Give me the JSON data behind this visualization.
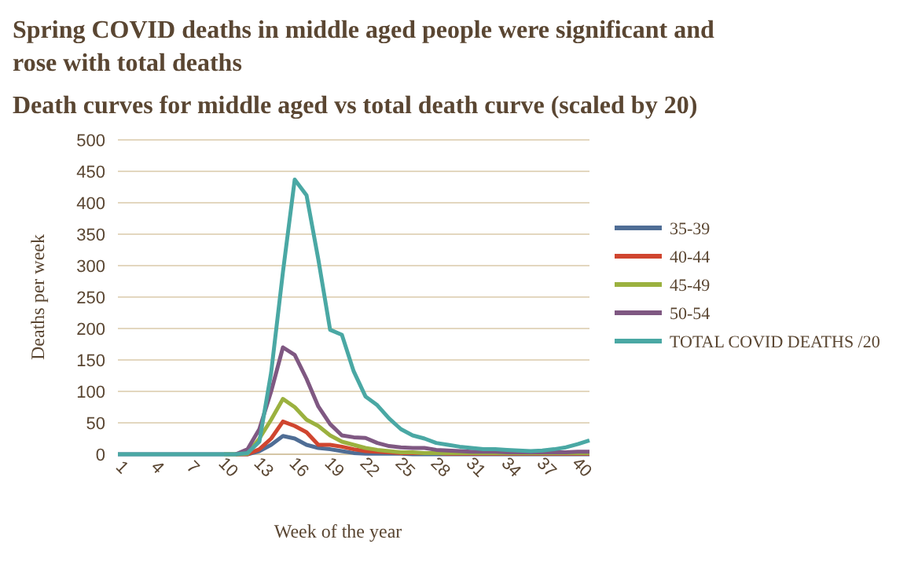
{
  "chart_data": {
    "type": "line",
    "title": "Spring COVID deaths in middle aged people were significant and rose with total deaths",
    "subtitle": "Death curves for middle aged vs total death curve (scaled by 20)",
    "xlabel": "Week of the year",
    "ylabel": "Deaths per week",
    "categories": [
      "1",
      null,
      null,
      "4",
      null,
      null,
      "7",
      null,
      null,
      "10",
      null,
      null,
      "13",
      null,
      null,
      "16",
      null,
      null,
      "19",
      null,
      null,
      "22",
      null,
      null,
      "25",
      null,
      null,
      "28",
      null,
      null,
      "31",
      null,
      null,
      "34",
      null,
      null,
      "37",
      null,
      null,
      "40",
      null
    ],
    "ylim": [
      0,
      500
    ],
    "yticks": [
      0,
      50,
      100,
      150,
      200,
      250,
      300,
      350,
      400,
      450,
      500
    ],
    "grid": "y",
    "legend": "right",
    "marker": "none",
    "line_style": "solid",
    "series": [
      {
        "name": "35-39",
        "color": "#4f6d95",
        "values": [
          0,
          0,
          0,
          0,
          0,
          0,
          0,
          0,
          0,
          0,
          0,
          0,
          5,
          15,
          29,
          25,
          15,
          10,
          8,
          5,
          2,
          1,
          1,
          1,
          1,
          0,
          0,
          0,
          0,
          0,
          0,
          0,
          0,
          0,
          0,
          0,
          0,
          0,
          0,
          0,
          0
        ]
      },
      {
        "name": "40-44",
        "color": "#d0452f",
        "values": [
          null,
          null,
          null,
          null,
          null,
          null,
          null,
          null,
          null,
          null,
          0,
          0,
          8,
          25,
          52,
          45,
          35,
          15,
          15,
          12,
          8,
          5,
          4,
          3,
          2,
          2,
          2,
          2,
          1,
          1,
          1,
          1,
          1,
          1,
          1,
          1,
          1,
          1,
          1,
          1,
          1
        ]
      },
      {
        "name": "45-49",
        "color": "#9bb13f",
        "values": [
          null,
          null,
          null,
          null,
          null,
          null,
          null,
          null,
          null,
          0,
          0,
          1,
          25,
          55,
          88,
          75,
          55,
          45,
          30,
          20,
          15,
          10,
          7,
          5,
          3,
          3,
          2,
          2,
          2,
          2,
          2,
          2,
          2,
          2,
          2,
          2,
          2,
          2,
          2,
          2,
          2
        ]
      },
      {
        "name": "50-54",
        "color": "#7f5882",
        "values": [
          null,
          null,
          null,
          null,
          null,
          null,
          null,
          null,
          null,
          null,
          0,
          8,
          40,
          100,
          170,
          158,
          120,
          76,
          48,
          30,
          27,
          26,
          18,
          13,
          11,
          10,
          10,
          7,
          6,
          5,
          4,
          4,
          4,
          3,
          3,
          3,
          3,
          3,
          3,
          4,
          4
        ]
      },
      {
        "name": "TOTAL COVID DEATHS /20",
        "color": "#4aa8a4",
        "values": [
          0,
          0,
          0,
          0,
          0,
          0,
          0,
          0,
          0,
          0,
          0,
          2,
          20,
          130,
          290,
          437,
          412,
          310,
          198,
          190,
          132,
          92,
          78,
          57,
          40,
          30,
          25,
          18,
          15,
          12,
          10,
          8,
          8,
          7,
          6,
          5,
          6,
          8,
          11,
          16,
          22
        ]
      }
    ]
  }
}
